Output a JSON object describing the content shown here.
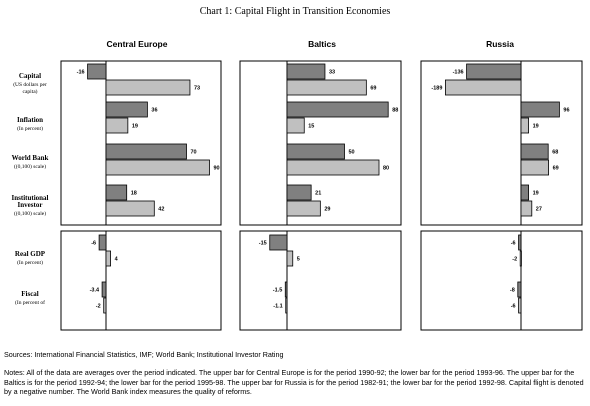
{
  "chart_data": {
    "type": "bar",
    "orientation": "horizontal",
    "title": "Chart 1: Capital Flight in Transition Economies",
    "columns": [
      "Central Europe",
      "Baltics",
      "Russia"
    ],
    "rows": [
      {
        "label": "Capital",
        "sublabel": "(US dollars per capita)",
        "values": {
          "Central Europe": [
            -16,
            73
          ],
          "Baltics": [
            33,
            69
          ],
          "Russia": [
            -136,
            -189
          ]
        },
        "printed": {
          "Central Europe": [
            "-16",
            "73"
          ],
          "Baltics": [
            "33",
            "69"
          ],
          "Russia": [
            "-136",
            "-189"
          ]
        }
      },
      {
        "label": "Inflation",
        "sublabel": "(In percent)",
        "values": {
          "Central Europe": [
            36,
            19
          ],
          "Baltics": [
            88,
            15
          ],
          "Russia": [
            96,
            19
          ]
        },
        "printed": {
          "Central Europe": [
            "36",
            "19"
          ],
          "Baltics": [
            "88",
            "15"
          ],
          "Russia": [
            "96",
            "19"
          ]
        }
      },
      {
        "label": "World Bank",
        "sublabel": "((0,100) scale)",
        "values": {
          "Central Europe": [
            70,
            90
          ],
          "Baltics": [
            50,
            80
          ],
          "Russia": [
            68,
            69
          ]
        },
        "printed": {
          "Central Europe": [
            "70",
            "90"
          ],
          "Baltics": [
            "50",
            "80"
          ],
          "Russia": [
            "68",
            "69"
          ]
        }
      },
      {
        "label": "Institutional Investor",
        "sublabel": "((0,100) scale)",
        "values": {
          "Central Europe": [
            18,
            42
          ],
          "Baltics": [
            21,
            29
          ],
          "Russia": [
            19,
            27
          ]
        },
        "printed": {
          "Central Europe": [
            "18",
            "42"
          ],
          "Baltics": [
            "21",
            "29"
          ],
          "Russia": [
            "19",
            "27"
          ]
        }
      },
      {
        "label": "Real GDP",
        "sublabel": "(In percent)",
        "values": {
          "Central Europe": [
            -6,
            4
          ],
          "Baltics": [
            -15,
            5
          ],
          "Russia": [
            -6,
            -2
          ]
        },
        "printed": {
          "Central Europe": [
            "-6",
            "4"
          ],
          "Baltics": [
            "-15",
            "5"
          ],
          "Russia": [
            "-6",
            "-2"
          ]
        }
      },
      {
        "label": "Fiscal",
        "sublabel": "(In percent of",
        "values": {
          "Central Europe": [
            -3.4,
            -2
          ],
          "Baltics": [
            -1.5,
            -1.1
          ],
          "Russia": [
            -8,
            -6
          ]
        },
        "printed": {
          "Central Europe": [
            "-3.4",
            "-2"
          ],
          "Baltics": [
            "-1.5",
            "-1.1"
          ],
          "Russia": [
            "-8",
            "-6"
          ]
        }
      }
    ],
    "series": [
      {
        "name": "upper bar",
        "color": "#808080"
      },
      {
        "name": "lower bar",
        "color": "#c0c0c0"
      }
    ]
  },
  "sources": "Sources: International Financial Statistics, IMF; World Bank; Institutional Investor Rating",
  "notes": "Notes:  All of the data are averages over the period indicated.  The upper bar for Central Europe is for the period 1990-92; the lower bar for the period 1993-96. The upper bar for the Baltics is for the period 1992-94; the lower bar for the period 1995-98. The upper bar for Russia is for the period 1982-91; the lower bar for the period 1992-98.  Capital flight is denoted by a negative number.  The World Bank index measures the quality of reforms."
}
